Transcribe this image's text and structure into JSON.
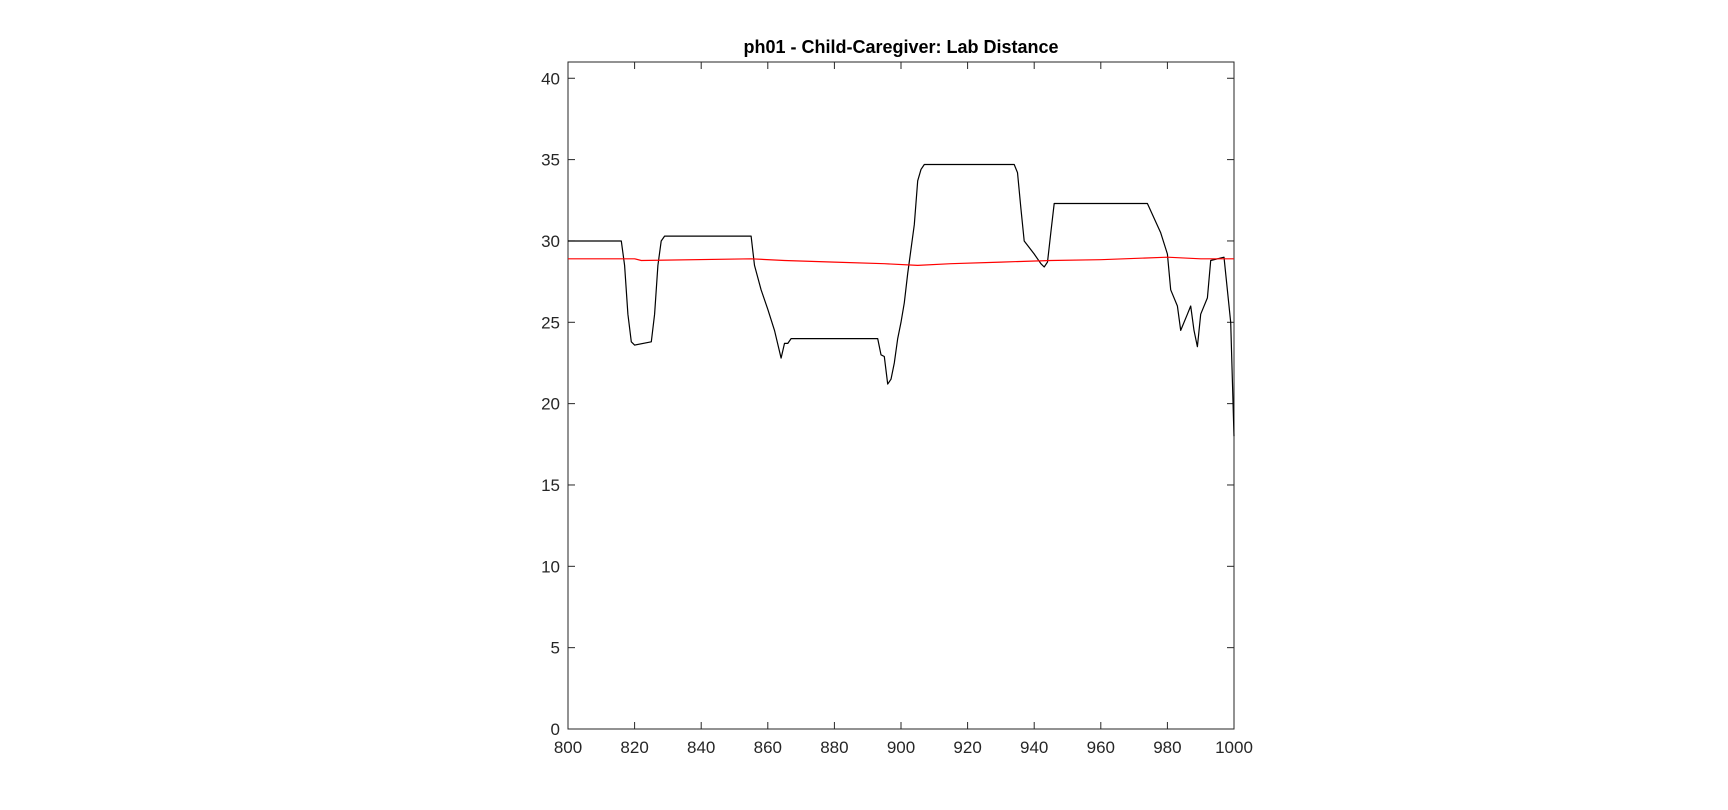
{
  "chart_data": {
    "type": "line",
    "title": "ph01 - Child-Caregiver: Lab Distance",
    "xlabel": "",
    "ylabel": "",
    "xlim": [
      800,
      1000
    ],
    "ylim": [
      0,
      41
    ],
    "xticks": [
      800,
      820,
      840,
      860,
      880,
      900,
      920,
      940,
      960,
      980,
      1000
    ],
    "yticks": [
      0,
      5,
      10,
      15,
      20,
      25,
      30,
      35,
      40
    ],
    "grid": false,
    "series": [
      {
        "color": "#000000",
        "points": [
          [
            800,
            30.0
          ],
          [
            816,
            30.0
          ],
          [
            817,
            28.5
          ],
          [
            818,
            25.5
          ],
          [
            819,
            23.8
          ],
          [
            820,
            23.6
          ],
          [
            825,
            23.8
          ],
          [
            826,
            25.5
          ],
          [
            827,
            28.5
          ],
          [
            828,
            30.0
          ],
          [
            829,
            30.3
          ],
          [
            855,
            30.3
          ],
          [
            856,
            28.5
          ],
          [
            858,
            27.0
          ],
          [
            860,
            25.8
          ],
          [
            862,
            24.5
          ],
          [
            864,
            22.8
          ],
          [
            865,
            23.7
          ],
          [
            866,
            23.7
          ],
          [
            867,
            24.0
          ],
          [
            893,
            24.0
          ],
          [
            894,
            23.0
          ],
          [
            895,
            22.9
          ],
          [
            896,
            21.2
          ],
          [
            897,
            21.5
          ],
          [
            898,
            22.5
          ],
          [
            899,
            24.0
          ],
          [
            900,
            25.0
          ],
          [
            901,
            26.2
          ],
          [
            902,
            28.0
          ],
          [
            903,
            29.5
          ],
          [
            904,
            31.0
          ],
          [
            905,
            33.7
          ],
          [
            906,
            34.4
          ],
          [
            907,
            34.7
          ],
          [
            934,
            34.7
          ],
          [
            935,
            34.2
          ],
          [
            936,
            32.0
          ],
          [
            937,
            30.0
          ],
          [
            940,
            29.2
          ],
          [
            942,
            28.6
          ],
          [
            943,
            28.4
          ],
          [
            944,
            28.7
          ],
          [
            945,
            30.5
          ],
          [
            946,
            32.3
          ],
          [
            974,
            32.3
          ],
          [
            978,
            30.5
          ],
          [
            980,
            29.2
          ],
          [
            981,
            27.0
          ],
          [
            983,
            26.0
          ],
          [
            984,
            24.5
          ],
          [
            986,
            25.5
          ],
          [
            987,
            26.0
          ],
          [
            988,
            24.5
          ],
          [
            989,
            23.5
          ],
          [
            990,
            25.5
          ],
          [
            992,
            26.5
          ],
          [
            993,
            28.8
          ],
          [
            997,
            29.0
          ],
          [
            999,
            25.0
          ],
          [
            1000,
            18.0
          ]
        ]
      },
      {
        "color": "#ff0000",
        "points": [
          [
            800,
            28.9
          ],
          [
            820,
            28.9
          ],
          [
            822,
            28.8
          ],
          [
            855,
            28.9
          ],
          [
            865,
            28.8
          ],
          [
            880,
            28.7
          ],
          [
            895,
            28.6
          ],
          [
            905,
            28.5
          ],
          [
            915,
            28.6
          ],
          [
            930,
            28.7
          ],
          [
            945,
            28.8
          ],
          [
            960,
            28.85
          ],
          [
            980,
            29.0
          ],
          [
            990,
            28.9
          ],
          [
            1000,
            28.9
          ]
        ]
      }
    ]
  }
}
